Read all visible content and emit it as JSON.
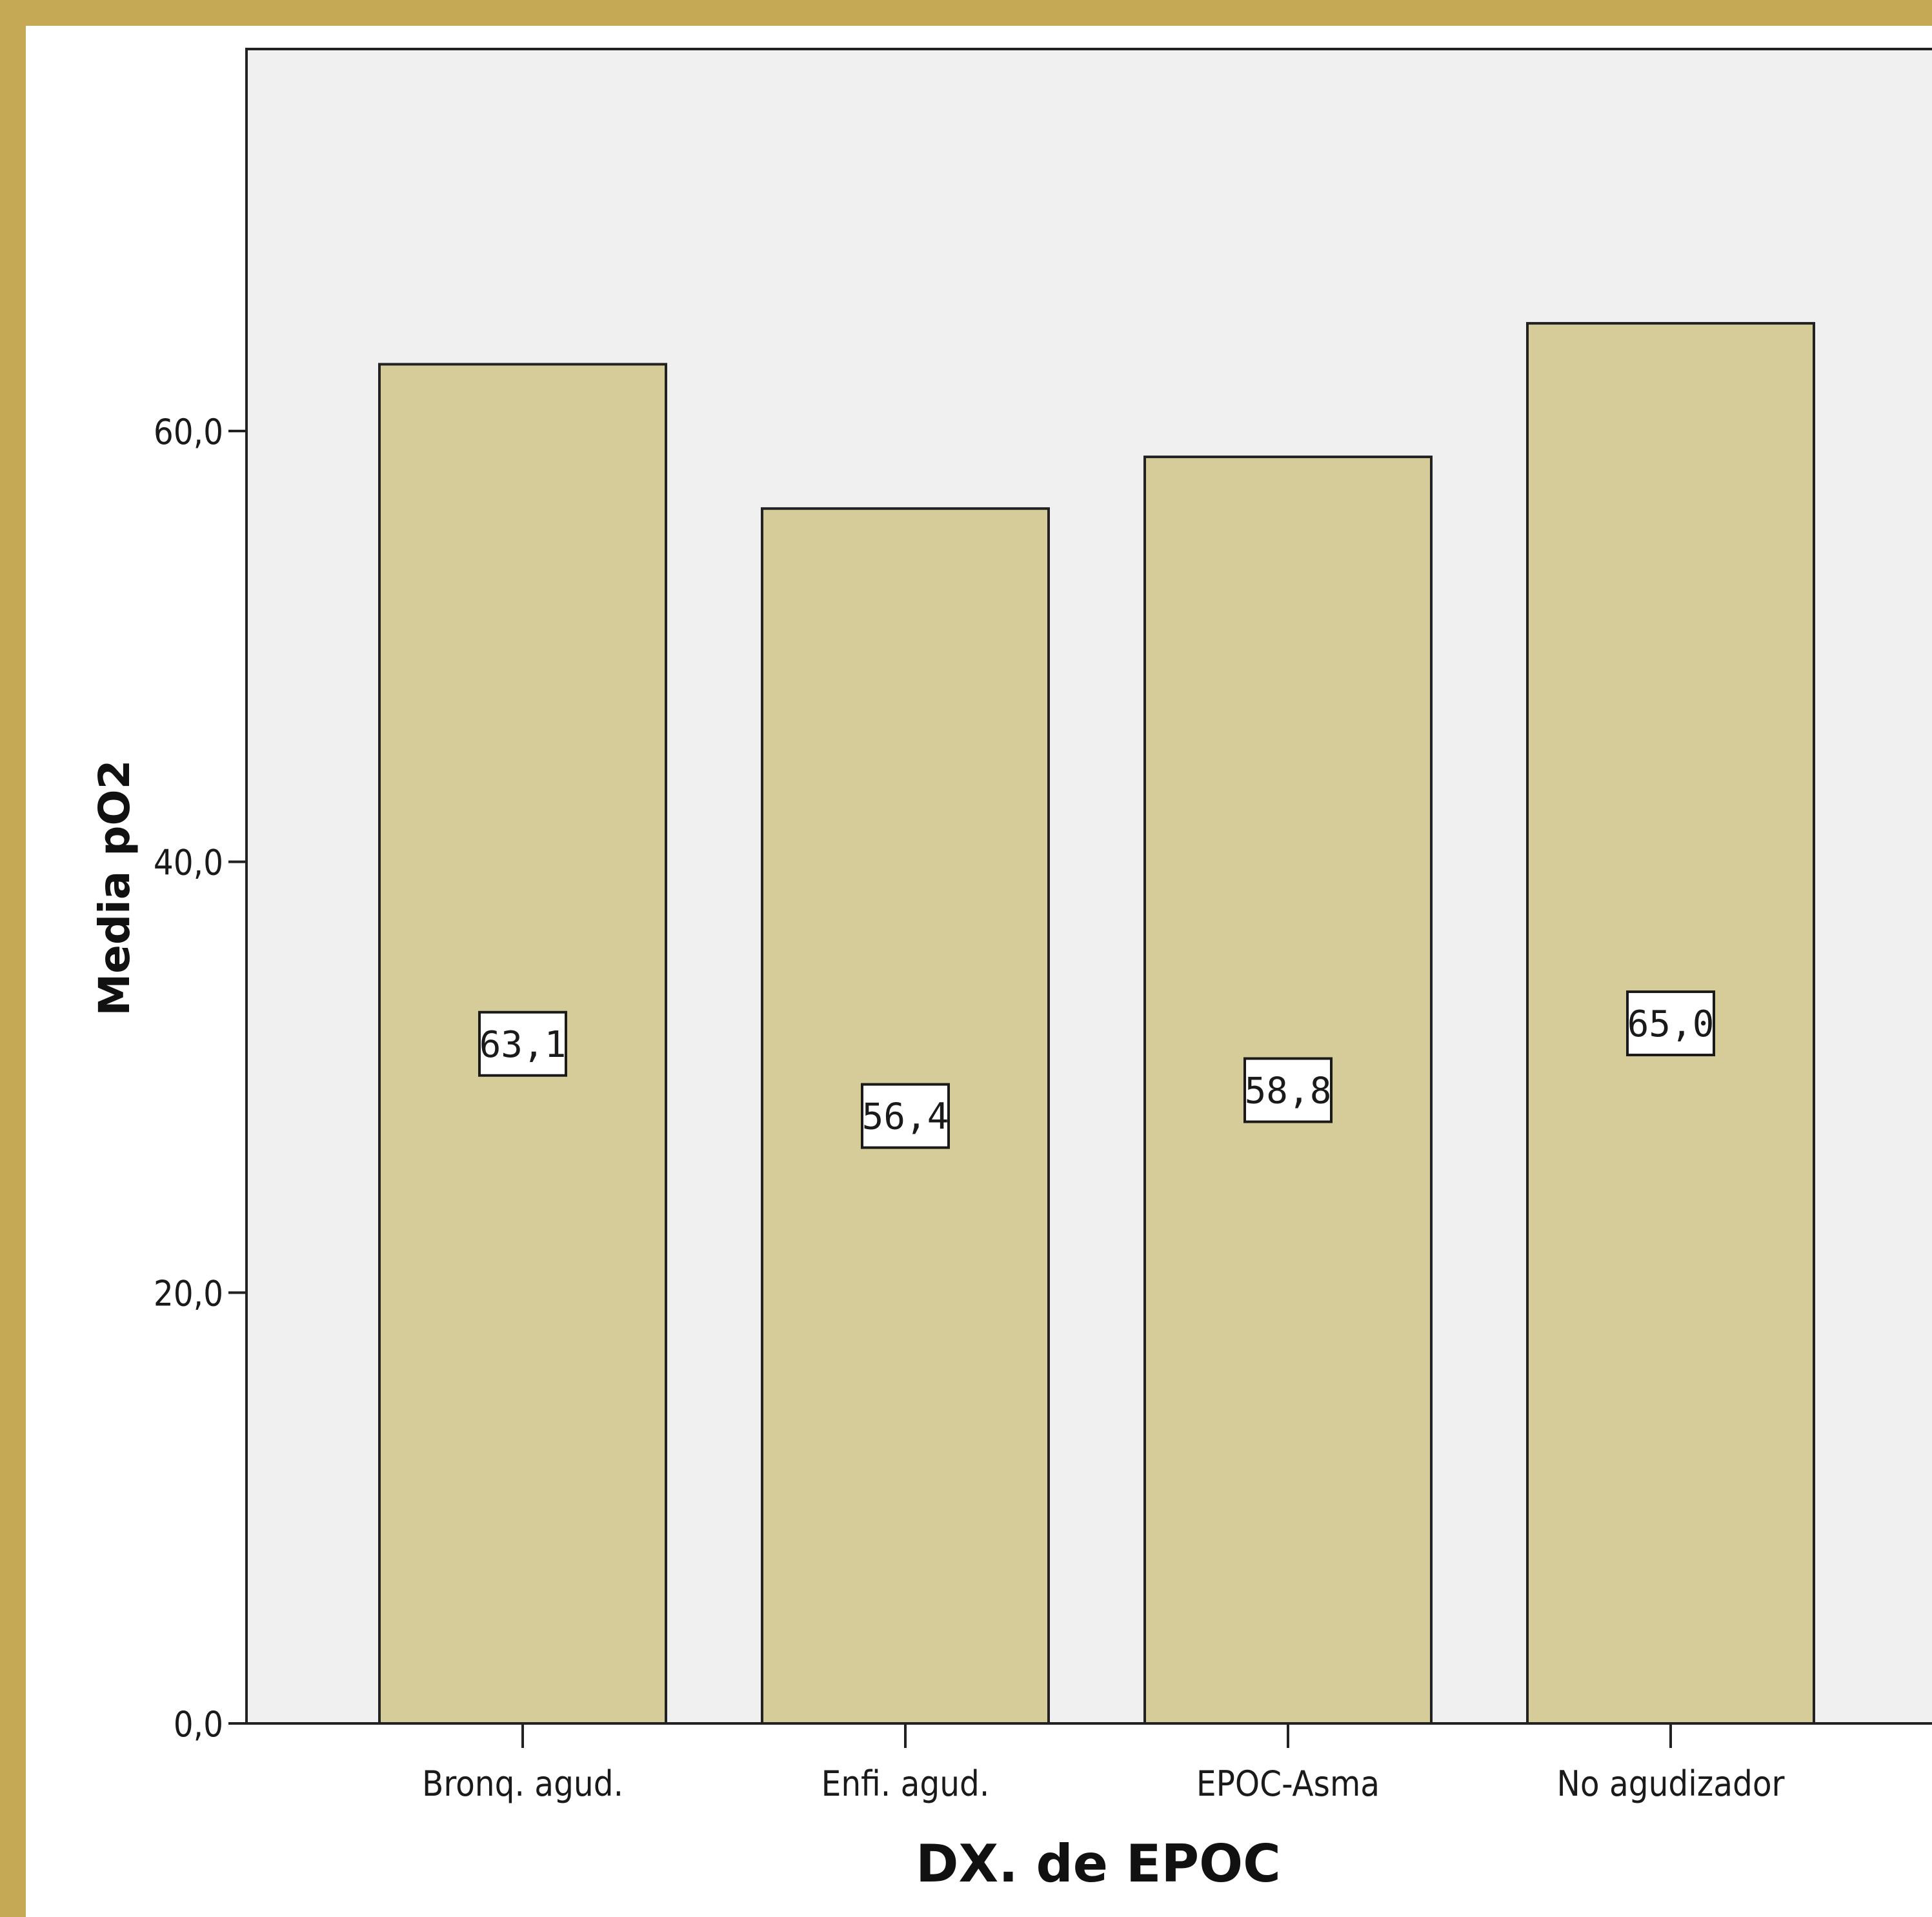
{
  "colors": {
    "frame": "#c5a955",
    "plot_background": "#f0f0f0",
    "bar_fill": "#d5cc9a",
    "bar_stroke": "#222222"
  },
  "chart_data": {
    "type": "bar",
    "categories": [
      "Bronq. agud.",
      "Enfi. agud.",
      "EPOC-Asma",
      "No agudizador"
    ],
    "values": [
      63.1,
      56.4,
      58.8,
      65.0
    ],
    "value_labels": [
      "63,1",
      "56,4",
      "58,8",
      "65,0"
    ],
    "xlabel": "DX. de EPOC",
    "ylabel": "Media pO2",
    "ylim": [
      0,
      78
    ],
    "yticks": [
      0,
      20,
      40,
      60
    ],
    "ytick_labels": [
      "0,0",
      "20,0",
      "40,0",
      "60,0"
    ],
    "grid": false,
    "legend": "none"
  }
}
